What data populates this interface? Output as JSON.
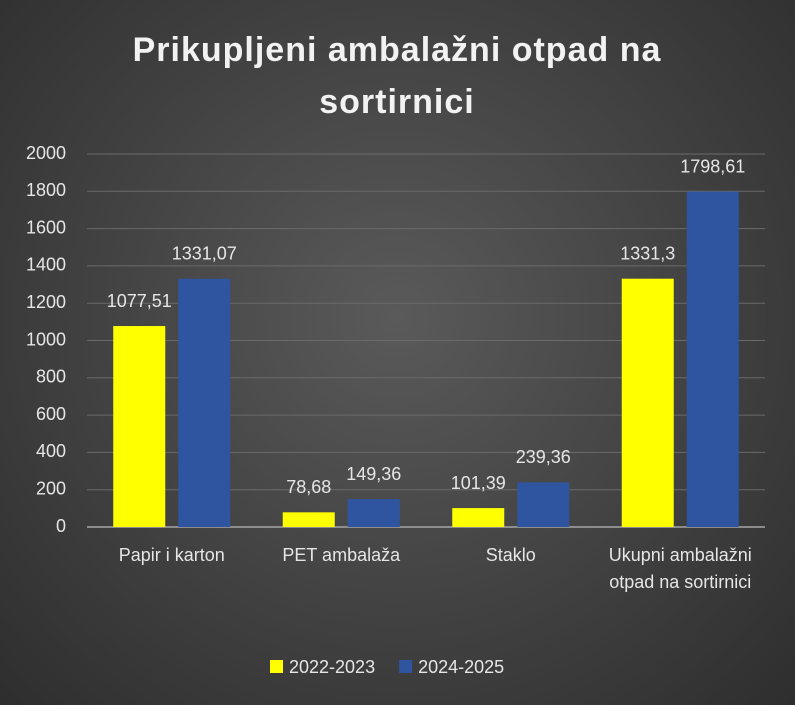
{
  "chart_data": {
    "type": "bar",
    "title": "Prikupljeni ambalažni otpad na sortirnici",
    "categories": [
      "Papir i karton",
      "PET ambalaža",
      "Staklo",
      "Ukupni ambalažni otpad na sortirnici"
    ],
    "series": [
      {
        "name": "2022-2023",
        "color": "#ffff00",
        "values": [
          1077.51,
          78.68,
          101.39,
          1331.3
        ],
        "value_labels": [
          "1077,51",
          "78,68",
          "101,39",
          "1331,3"
        ]
      },
      {
        "name": "2024-2025",
        "color": "#2f55a0",
        "values": [
          1331.07,
          149.36,
          239.36,
          1798.61
        ],
        "value_labels": [
          "1331,07",
          "149,36",
          "239,36",
          "1798,61"
        ]
      }
    ],
    "ylim": [
      0,
      2000
    ],
    "yticks": [
      0,
      200,
      400,
      600,
      800,
      1000,
      1200,
      1400,
      1600,
      1800,
      2000
    ],
    "grid": true,
    "legend": "bottom"
  }
}
